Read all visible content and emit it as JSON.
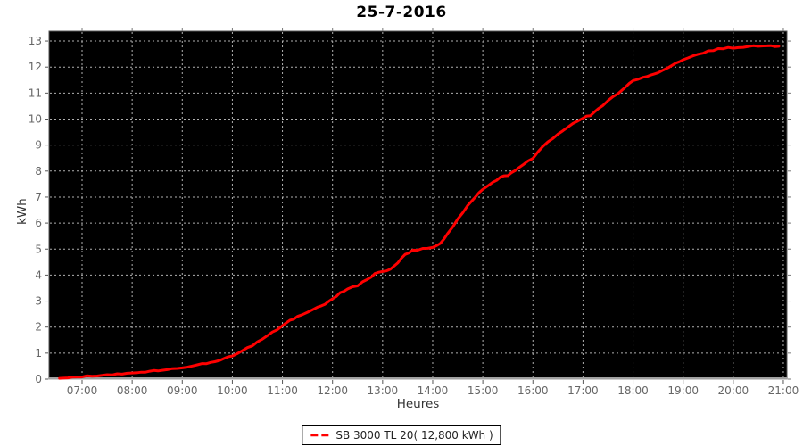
{
  "title": "25-7-2016",
  "colors": {
    "page_background": "#ffffff",
    "plot_background": "#000000",
    "grid_line": "#b0b0b0",
    "curve": "#ff0000",
    "axis_line": "#a0a0a0",
    "tick_mark": "#555555",
    "tick_label": "#666666",
    "axis_label": "#333333",
    "title_text": "#000000",
    "legend_border": "#000000"
  },
  "chart_data": {
    "type": "line",
    "title": "25-7-2016",
    "xlabel": "Heures",
    "ylabel": "kWh",
    "x_tick_labels": [
      "07:00",
      "08:00",
      "09:00",
      "10:00",
      "11:00",
      "12:00",
      "13:00",
      "14:00",
      "15:00",
      "16:00",
      "17:00",
      "18:00",
      "19:00",
      "20:00",
      "21:00"
    ],
    "x_tick_hours": [
      7,
      8,
      9,
      10,
      11,
      12,
      13,
      14,
      15,
      16,
      17,
      18,
      19,
      20,
      21
    ],
    "y_ticks": [
      0,
      1,
      2,
      3,
      4,
      5,
      6,
      7,
      8,
      9,
      10,
      11,
      12,
      13
    ],
    "ylim": [
      0,
      13
    ],
    "xlim_hours": [
      6.34,
      21.07
    ],
    "grid": {
      "shown": true,
      "style": "dashed",
      "color": "#b0b0b0"
    },
    "plot_background": "#000000",
    "legend": {
      "position": "bottom-center",
      "entries": [
        {
          "label": "SB 3000 TL 20( 12,800 kWh )",
          "color": "#ff0000",
          "marker": "dashed-line"
        }
      ]
    },
    "series": [
      {
        "name": "SB 3000 TL 20( 12,800 kWh )",
        "color": "#ff0000",
        "final_value_kwh": 12.8,
        "points_hour_kwh": [
          [
            6.55,
            0.03
          ],
          [
            6.8,
            0.06
          ],
          [
            7.0,
            0.1
          ],
          [
            7.3,
            0.14
          ],
          [
            7.6,
            0.18
          ],
          [
            7.9,
            0.23
          ],
          [
            8.1,
            0.26
          ],
          [
            8.35,
            0.3
          ],
          [
            8.6,
            0.35
          ],
          [
            8.8,
            0.39
          ],
          [
            9.0,
            0.43
          ],
          [
            9.2,
            0.5
          ],
          [
            9.4,
            0.58
          ],
          [
            9.65,
            0.68
          ],
          [
            9.85,
            0.8
          ],
          [
            10.0,
            0.9
          ],
          [
            10.2,
            1.08
          ],
          [
            10.4,
            1.3
          ],
          [
            10.6,
            1.55
          ],
          [
            10.8,
            1.8
          ],
          [
            11.0,
            2.05
          ],
          [
            11.15,
            2.25
          ],
          [
            11.3,
            2.4
          ],
          [
            11.5,
            2.55
          ],
          [
            11.7,
            2.75
          ],
          [
            11.85,
            2.9
          ],
          [
            12.0,
            3.1
          ],
          [
            12.15,
            3.3
          ],
          [
            12.3,
            3.45
          ],
          [
            12.5,
            3.6
          ],
          [
            12.7,
            3.85
          ],
          [
            12.85,
            4.05
          ],
          [
            13.0,
            4.15
          ],
          [
            13.15,
            4.22
          ],
          [
            13.3,
            4.45
          ],
          [
            13.45,
            4.8
          ],
          [
            13.6,
            4.95
          ],
          [
            13.8,
            5.0
          ],
          [
            14.0,
            5.05
          ],
          [
            14.15,
            5.2
          ],
          [
            14.3,
            5.6
          ],
          [
            14.5,
            6.15
          ],
          [
            14.7,
            6.7
          ],
          [
            14.85,
            7.0
          ],
          [
            15.0,
            7.3
          ],
          [
            15.2,
            7.55
          ],
          [
            15.35,
            7.75
          ],
          [
            15.5,
            7.85
          ],
          [
            15.65,
            8.0
          ],
          [
            15.8,
            8.25
          ],
          [
            16.0,
            8.5
          ],
          [
            16.2,
            8.95
          ],
          [
            16.4,
            9.25
          ],
          [
            16.6,
            9.55
          ],
          [
            16.8,
            9.85
          ],
          [
            17.0,
            10.05
          ],
          [
            17.15,
            10.15
          ],
          [
            17.3,
            10.4
          ],
          [
            17.5,
            10.7
          ],
          [
            17.7,
            11.0
          ],
          [
            17.85,
            11.25
          ],
          [
            18.0,
            11.5
          ],
          [
            18.2,
            11.6
          ],
          [
            18.35,
            11.7
          ],
          [
            18.5,
            11.8
          ],
          [
            18.7,
            12.0
          ],
          [
            18.85,
            12.15
          ],
          [
            19.0,
            12.3
          ],
          [
            19.2,
            12.45
          ],
          [
            19.4,
            12.55
          ],
          [
            19.6,
            12.65
          ],
          [
            19.8,
            12.72
          ],
          [
            20.0,
            12.74
          ],
          [
            20.2,
            12.78
          ],
          [
            20.4,
            12.8
          ],
          [
            20.6,
            12.79
          ],
          [
            20.75,
            12.8
          ],
          [
            20.91,
            12.8
          ]
        ]
      }
    ]
  }
}
